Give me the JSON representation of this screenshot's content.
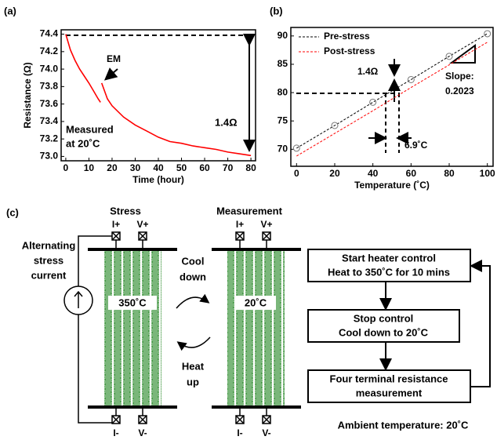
{
  "chart_data": [
    {
      "type": "line",
      "panel": "(a)",
      "x_label": "Time (hour)",
      "y_label": "Resistance (Ω)",
      "x": [
        0,
        2,
        4,
        6,
        8,
        10,
        12,
        14,
        15,
        15.2,
        15.5,
        18,
        20,
        25,
        30,
        35,
        40,
        45,
        50,
        55,
        60,
        65,
        70,
        75,
        80
      ],
      "series": [
        {
          "name": null,
          "color": "#ff0000",
          "values": [
            74.4,
            74.22,
            74.1,
            74.0,
            73.92,
            73.84,
            73.75,
            73.66,
            73.62,
            null,
            73.84,
            73.66,
            73.58,
            73.45,
            73.36,
            73.29,
            73.22,
            73.17,
            73.15,
            73.12,
            73.1,
            73.08,
            73.05,
            73.03,
            73.01
          ]
        }
      ],
      "xlim": [
        -2,
        82
      ],
      "xticks": [
        0,
        10,
        20,
        30,
        40,
        50,
        60,
        70,
        80
      ],
      "ylim": [
        72.95,
        74.45
      ],
      "yticks": [
        {
          "value": 73,
          "label": "73.0"
        },
        73.2,
        73.4,
        73.6,
        73.8,
        {
          "value": 74,
          "label": "74.0"
        },
        74.2,
        74.4
      ],
      "annotations": [
        "EM",
        "Measured",
        "at 20˚C",
        "1.4Ω"
      ]
    },
    {
      "type": "line",
      "panel": "(b)",
      "x_label": "Temperature (˚C)",
      "y_label": null,
      "x": [
        0,
        20,
        40,
        60,
        80,
        100
      ],
      "series": [
        {
          "name": "Pre-stress",
          "color": "#000000",
          "marker": "circle",
          "values": [
            70.2,
            74.2,
            78.3,
            82.3,
            86.4,
            90.4
          ]
        },
        {
          "name": "Post-stress",
          "color": "#ff0000",
          "values": [
            68.8,
            72.8,
            76.8,
            80.9,
            84.9,
            88.9
          ]
        }
      ],
      "xlim": [
        -3,
        103
      ],
      "xticks": [
        0,
        20,
        40,
        60,
        80,
        100
      ],
      "ylim": [
        67,
        91.5
      ],
      "yticks": [
        70,
        75,
        80,
        85,
        90
      ],
      "legend": "upper left",
      "annotations": [
        "1.4Ω",
        "Slope:",
        "0.2023",
        "6.9˚C"
      ]
    }
  ],
  "diagram": {
    "panel": "(c)",
    "stress": "Stress",
    "measurement": "Measurement",
    "terminals": [
      "I+",
      "V+",
      "I-",
      "V-"
    ],
    "source": [
      "Alternating",
      "stress",
      "current"
    ],
    "hot": "350˚C",
    "cold": "20˚C",
    "cool": [
      "Cool",
      "down"
    ],
    "heat": [
      "Heat",
      "up"
    ],
    "steps": [
      [
        "Start heater control",
        "Heat to 350˚C for 10 mins"
      ],
      [
        "Stop control",
        "Cool down to 20˚C"
      ],
      [
        "Four terminal resistance",
        "measurement"
      ]
    ],
    "ambient": "Ambient temperature: 20˚C"
  }
}
